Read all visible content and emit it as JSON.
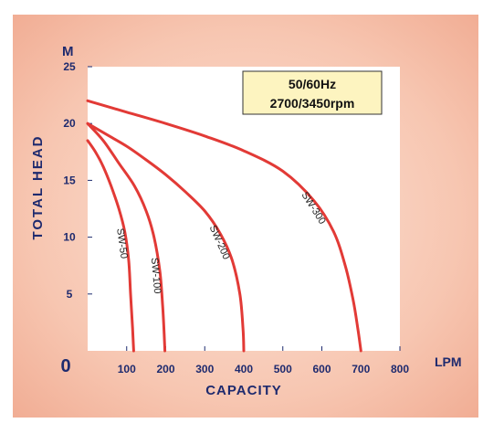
{
  "chart_data": {
    "type": "line",
    "xlabel": "CAPACITY",
    "x_unit": "LPM",
    "ylabel": "TOTAL HEAD",
    "y_unit": "M",
    "xlim": [
      0,
      800
    ],
    "ylim": [
      0,
      25
    ],
    "x_ticks": [
      "100",
      "200",
      "300",
      "400",
      "500",
      "600",
      "700",
      "800"
    ],
    "y_ticks": [
      "0",
      "5",
      "10",
      "15",
      "20",
      "25"
    ],
    "annotation": [
      "50/60Hz",
      "2700/3450rpm"
    ],
    "grid": false,
    "series": [
      {
        "name": "SW-50",
        "color": "#e23a36",
        "points": [
          [
            0,
            18.5
          ],
          [
            20,
            17.5
          ],
          [
            40,
            16.2
          ],
          [
            60,
            14.5
          ],
          [
            80,
            12.5
          ],
          [
            95,
            10.5
          ],
          [
            105,
            8
          ],
          [
            110,
            5
          ],
          [
            115,
            2
          ],
          [
            118,
            0
          ]
        ]
      },
      {
        "name": "SW-100",
        "color": "#e23a36",
        "points": [
          [
            0,
            20
          ],
          [
            40,
            18.5
          ],
          [
            80,
            16.5
          ],
          [
            120,
            14.5
          ],
          [
            150,
            12.3
          ],
          [
            170,
            10
          ],
          [
            185,
            7
          ],
          [
            192,
            4
          ],
          [
            196,
            1.5
          ],
          [
            198,
            0
          ]
        ]
      },
      {
        "name": "SW-200",
        "color": "#e23a36",
        "points": [
          [
            0,
            20
          ],
          [
            50,
            19
          ],
          [
            100,
            18
          ],
          [
            150,
            16.8
          ],
          [
            200,
            15.5
          ],
          [
            250,
            14
          ],
          [
            300,
            12.3
          ],
          [
            340,
            10.3
          ],
          [
            370,
            8
          ],
          [
            390,
            5
          ],
          [
            398,
            2
          ],
          [
            400,
            0
          ]
        ]
      },
      {
        "name": "SW-300",
        "color": "#e23a36",
        "points": [
          [
            0,
            22
          ],
          [
            100,
            21
          ],
          [
            200,
            20
          ],
          [
            300,
            18.9
          ],
          [
            400,
            17.6
          ],
          [
            500,
            15.8
          ],
          [
            580,
            13.2
          ],
          [
            630,
            10.5
          ],
          [
            660,
            7.5
          ],
          [
            680,
            4.5
          ],
          [
            692,
            2
          ],
          [
            700,
            0
          ]
        ]
      }
    ]
  }
}
